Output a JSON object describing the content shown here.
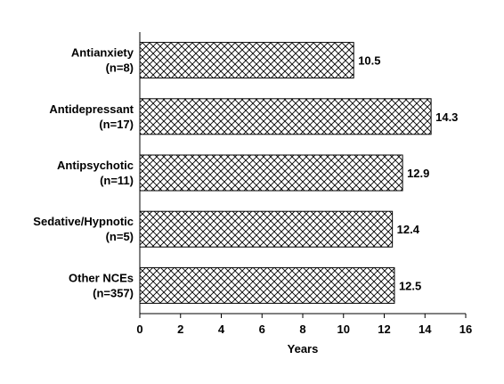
{
  "chart_data": {
    "type": "bar",
    "orientation": "horizontal",
    "categories": [
      [
        "Antianxiety",
        "(n=8)"
      ],
      [
        "Antidepressant",
        "(n=17)"
      ],
      [
        "Antipsychotic",
        "(n=11)"
      ],
      [
        "Sedative/Hypnotic",
        "(n=5)"
      ],
      [
        "Other NCEs",
        "(n=357)"
      ]
    ],
    "values": [
      10.5,
      14.3,
      12.9,
      12.4,
      12.5
    ],
    "value_labels": [
      "10.5",
      "14.3",
      "12.9",
      "12.4",
      "12.5"
    ],
    "xlabel": "Years",
    "ylabel": "",
    "xlim": [
      0,
      16
    ],
    "xticks": [
      0,
      2,
      4,
      6,
      8,
      10,
      12,
      14,
      16
    ],
    "grid": false,
    "legend": "none",
    "bar_pattern": "crosshatch",
    "bar_fill": "#ffffff",
    "bar_stroke": "#000000"
  }
}
